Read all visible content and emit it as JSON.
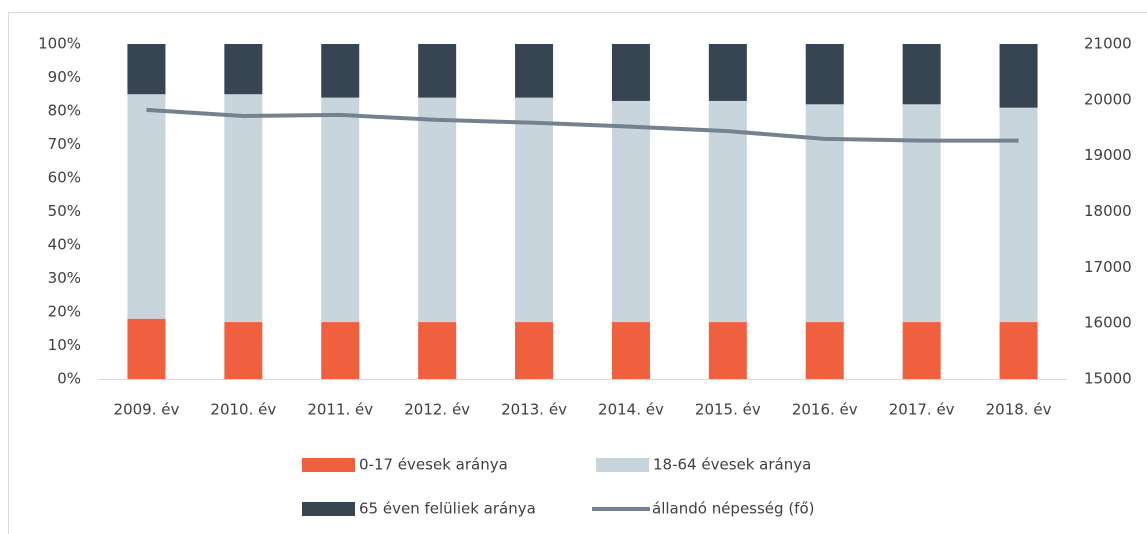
{
  "chart_data": {
    "type": "bar",
    "stacked": true,
    "categories": [
      "2009. év",
      "2010. év",
      "2011. év",
      "2012. év",
      "2013. év",
      "2014. év",
      "2015. év",
      "2016. év",
      "2017. év",
      "2018. év"
    ],
    "series": [
      {
        "name": "0-17 évesek aránya",
        "color": "#f0603f",
        "values": [
          18,
          17,
          17,
          17,
          17,
          17,
          17,
          17,
          17,
          17
        ]
      },
      {
        "name": "18-64 évesek aránya",
        "color": "#c9d5dd",
        "values": [
          67,
          68,
          67,
          67,
          67,
          66,
          66,
          65,
          65,
          64
        ]
      },
      {
        "name": "65 éven felüliek aránya",
        "color": "#374451",
        "values": [
          15,
          15,
          16,
          16,
          16,
          17,
          17,
          18,
          18,
          19
        ]
      },
      {
        "name": "állandó népesség (fő)",
        "color": "#748290",
        "type": "line",
        "axis": "y2",
        "values": [
          19820,
          19710,
          19730,
          19640,
          19590,
          19520,
          19440,
          19300,
          19270,
          19270
        ]
      }
    ],
    "ylim": [
      0,
      100
    ],
    "yticks": [
      {
        "value": 0,
        "label": "0%"
      },
      {
        "value": 10,
        "label": "10%"
      },
      {
        "value": 20,
        "label": "20%"
      },
      {
        "value": 30,
        "label": "30%"
      },
      {
        "value": 40,
        "label": "40%"
      },
      {
        "value": 50,
        "label": "50%"
      },
      {
        "value": 60,
        "label": "60%"
      },
      {
        "value": 70,
        "label": "70%"
      },
      {
        "value": 80,
        "label": "80%"
      },
      {
        "value": 90,
        "label": "90%"
      },
      {
        "value": 100,
        "label": "100%"
      }
    ],
    "y2lim": [
      15000,
      21000
    ],
    "y2ticks": [
      15000,
      16000,
      17000,
      18000,
      19000,
      20000,
      21000
    ],
    "grid": false,
    "legend": "bottom"
  }
}
